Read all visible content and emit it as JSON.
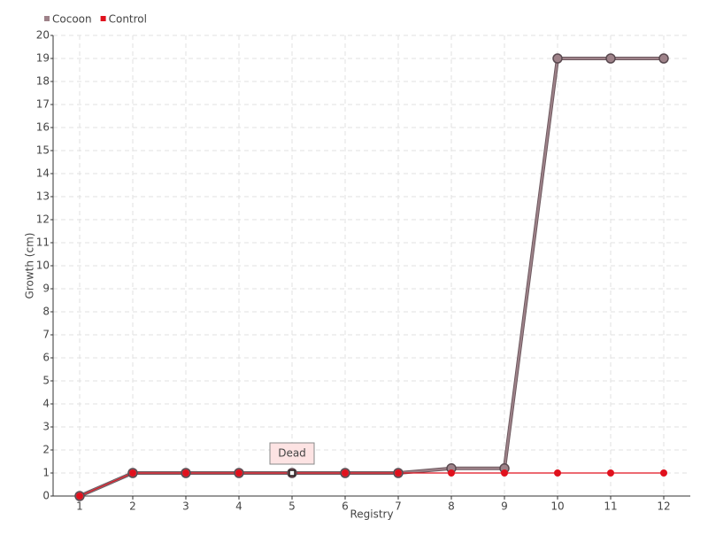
{
  "chart_data": {
    "type": "line",
    "x_label": "Registry",
    "y_label": "Growth (cm)",
    "x": [
      1,
      2,
      3,
      4,
      5,
      6,
      7,
      8,
      9,
      10,
      11,
      12
    ],
    "series": [
      {
        "name": "Cocoon",
        "color": "#9e8289",
        "values": [
          0,
          1,
          1,
          1,
          1,
          1,
          1,
          1.2,
          1.2,
          19,
          19,
          19
        ]
      },
      {
        "name": "Control",
        "color": "#e0111d",
        "values": [
          0,
          1,
          1,
          1,
          1,
          1,
          1,
          1,
          1,
          1,
          1,
          1
        ]
      }
    ],
    "xlim": [
      0.5,
      12.5
    ],
    "ylim": [
      0,
      20
    ],
    "xticks": [
      1,
      2,
      3,
      4,
      5,
      6,
      7,
      8,
      9,
      10,
      11,
      12
    ],
    "yticks": [
      0,
      1,
      2,
      3,
      4,
      5,
      6,
      7,
      8,
      9,
      10,
      11,
      12,
      13,
      14,
      15,
      16,
      17,
      18,
      19,
      20
    ],
    "grid": true,
    "legend": "top-left",
    "annotation": {
      "text": "Dead",
      "x": 5,
      "y": 1
    }
  }
}
